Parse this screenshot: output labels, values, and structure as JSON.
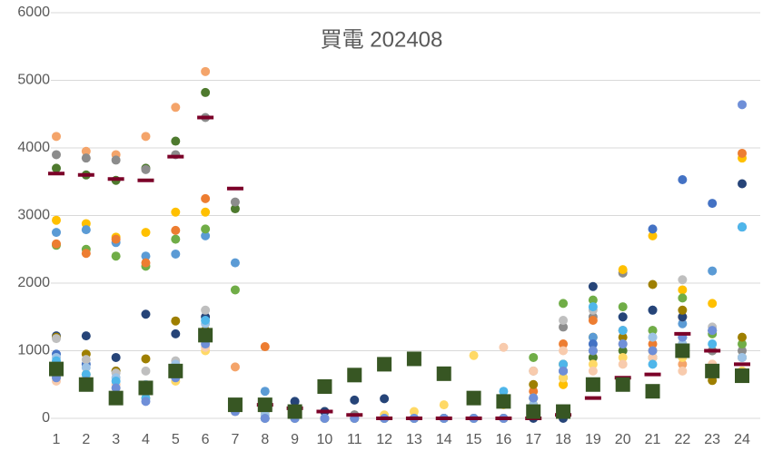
{
  "chart_data": {
    "type": "line",
    "title": "買電 202408",
    "categories": [
      "1",
      "2",
      "3",
      "4",
      "5",
      "6",
      "7",
      "8",
      "9",
      "10",
      "11",
      "12",
      "13",
      "14",
      "15",
      "16",
      "17",
      "18",
      "19",
      "20",
      "21",
      "22",
      "23",
      "24"
    ],
    "ylim": [
      0,
      6000
    ],
    "yticks": [
      0,
      1000,
      2000,
      3000,
      4000,
      5000,
      6000
    ],
    "grid": true,
    "series": [
      {
        "color": "#f4a46a",
        "values": [
          4170,
          3950,
          3900,
          4170,
          4600,
          5130,
          760,
          0,
          0,
          0,
          0,
          0,
          0,
          0,
          0,
          0,
          100,
          500,
          900,
          1100,
          1000,
          800,
          750,
          700
        ]
      },
      {
        "color": "#4e7a2e",
        "values": [
          3700,
          3600,
          3520,
          3700,
          4100,
          4820,
          3100,
          200,
          150,
          100,
          50,
          0,
          0,
          0,
          0,
          0,
          200,
          600,
          900,
          1000,
          900,
          1200,
          1000,
          900
        ]
      },
      {
        "color": "#8c8c8c",
        "values": [
          3900,
          3850,
          3820,
          3680,
          3900,
          4450,
          3200,
          200,
          100,
          100,
          50,
          0,
          0,
          0,
          0,
          0,
          700,
          1350,
          1500,
          2150,
          1300,
          1100,
          1000,
          1000
        ]
      },
      {
        "color": "#ffc000",
        "values": [
          2930,
          2880,
          2680,
          2750,
          3050,
          3050,
          200,
          100,
          50,
          0,
          0,
          0,
          0,
          0,
          0,
          0,
          200,
          500,
          1200,
          2200,
          2700,
          1900,
          1700,
          3850
        ]
      },
      {
        "color": "#5b9bd5",
        "values": [
          2750,
          2790,
          2600,
          2400,
          2430,
          2700,
          2300,
          400,
          250,
          0,
          0,
          0,
          0,
          0,
          0,
          0,
          100,
          700,
          1200,
          1500,
          1600,
          1400,
          2180,
          2830
        ]
      },
      {
        "color": "#70ad47",
        "values": [
          2560,
          2500,
          2400,
          2250,
          2650,
          2800,
          1900,
          100,
          0,
          0,
          0,
          0,
          0,
          0,
          0,
          0,
          900,
          1700,
          1750,
          1650,
          1300,
          1780,
          1250,
          1100
        ]
      },
      {
        "color": "#ed7d31",
        "values": [
          2580,
          2440,
          2650,
          2300,
          2780,
          3250,
          200,
          1060,
          0,
          0,
          0,
          0,
          0,
          0,
          0,
          0,
          400,
          1100,
          1450,
          1300,
          1100,
          1500,
          1300,
          3920
        ]
      },
      {
        "color": "#4472c4",
        "values": [
          950,
          800,
          700,
          400,
          600,
          1200,
          200,
          0,
          0,
          0,
          0,
          0,
          0,
          0,
          0,
          0,
          300,
          700,
          1100,
          1300,
          2800,
          3530,
          3180,
          2830
        ]
      },
      {
        "color": "#264478",
        "values": [
          1220,
          1220,
          900,
          1540,
          1250,
          1500,
          200,
          200,
          250,
          100,
          270,
          290,
          0,
          0,
          0,
          0,
          0,
          0,
          1950,
          1500,
          1600,
          1500,
          1300,
          3470
        ]
      },
      {
        "color": "#9e7f00",
        "values": [
          1200,
          950,
          700,
          880,
          1440,
          1300,
          200,
          100,
          50,
          0,
          0,
          0,
          0,
          0,
          0,
          300,
          500,
          800,
          1000,
          1200,
          1980,
          1600,
          560,
          1200
        ]
      },
      {
        "color": "#bfbfbf",
        "values": [
          1180,
          870,
          670,
          700,
          850,
          1600,
          200,
          100,
          0,
          0,
          0,
          0,
          0,
          0,
          0,
          0,
          300,
          1450,
          1600,
          1300,
          1200,
          2050,
          1350,
          900
        ]
      },
      {
        "color": "#9dc3e6",
        "values": [
          900,
          750,
          600,
          500,
          800,
          1400,
          150,
          50,
          0,
          0,
          0,
          0,
          0,
          0,
          0,
          0,
          200,
          600,
          1000,
          1100,
          1200,
          1100,
          1300,
          900
        ]
      },
      {
        "color": "#ffd966",
        "values": [
          600,
          650,
          450,
          300,
          550,
          1000,
          100,
          0,
          0,
          0,
          0,
          50,
          100,
          200,
          930,
          200,
          300,
          600,
          800,
          900,
          1000,
          900,
          800,
          700
        ]
      },
      {
        "color": "#f8cbad",
        "values": [
          550,
          600,
          500,
          400,
          600,
          1050,
          100,
          0,
          0,
          0,
          0,
          0,
          0,
          0,
          0,
          1050,
          700,
          1000,
          700,
          800,
          900,
          700,
          800,
          600
        ]
      },
      {
        "color": "#4fb6ea",
        "values": [
          850,
          650,
          550,
          300,
          650,
          1450,
          200,
          0,
          0,
          0,
          0,
          0,
          0,
          0,
          0,
          400,
          300,
          800,
          1650,
          1300,
          800,
          1200,
          1100,
          2830
        ]
      },
      {
        "color": "#6f8fd8",
        "values": [
          600,
          550,
          450,
          250,
          600,
          1100,
          100,
          0,
          0,
          0,
          0,
          0,
          0,
          0,
          0,
          0,
          300,
          700,
          1000,
          1100,
          1000,
          1200,
          1300,
          4640
        ]
      },
      {
        "color": "#7b0028",
        "marker": "dash",
        "values": [
          3620,
          3600,
          3540,
          3520,
          3870,
          4450,
          3400,
          200,
          150,
          100,
          50,
          0,
          0,
          0,
          0,
          0,
          0,
          50,
          300,
          600,
          650,
          1250,
          1000,
          800
        ]
      },
      {
        "color": "#375623",
        "marker": "square",
        "values": [
          730,
          500,
          300,
          450,
          700,
          1230,
          200,
          200,
          100,
          470,
          640,
          800,
          880,
          660,
          300,
          250,
          100,
          100,
          500,
          500,
          400,
          1000,
          700,
          630
        ]
      }
    ]
  }
}
